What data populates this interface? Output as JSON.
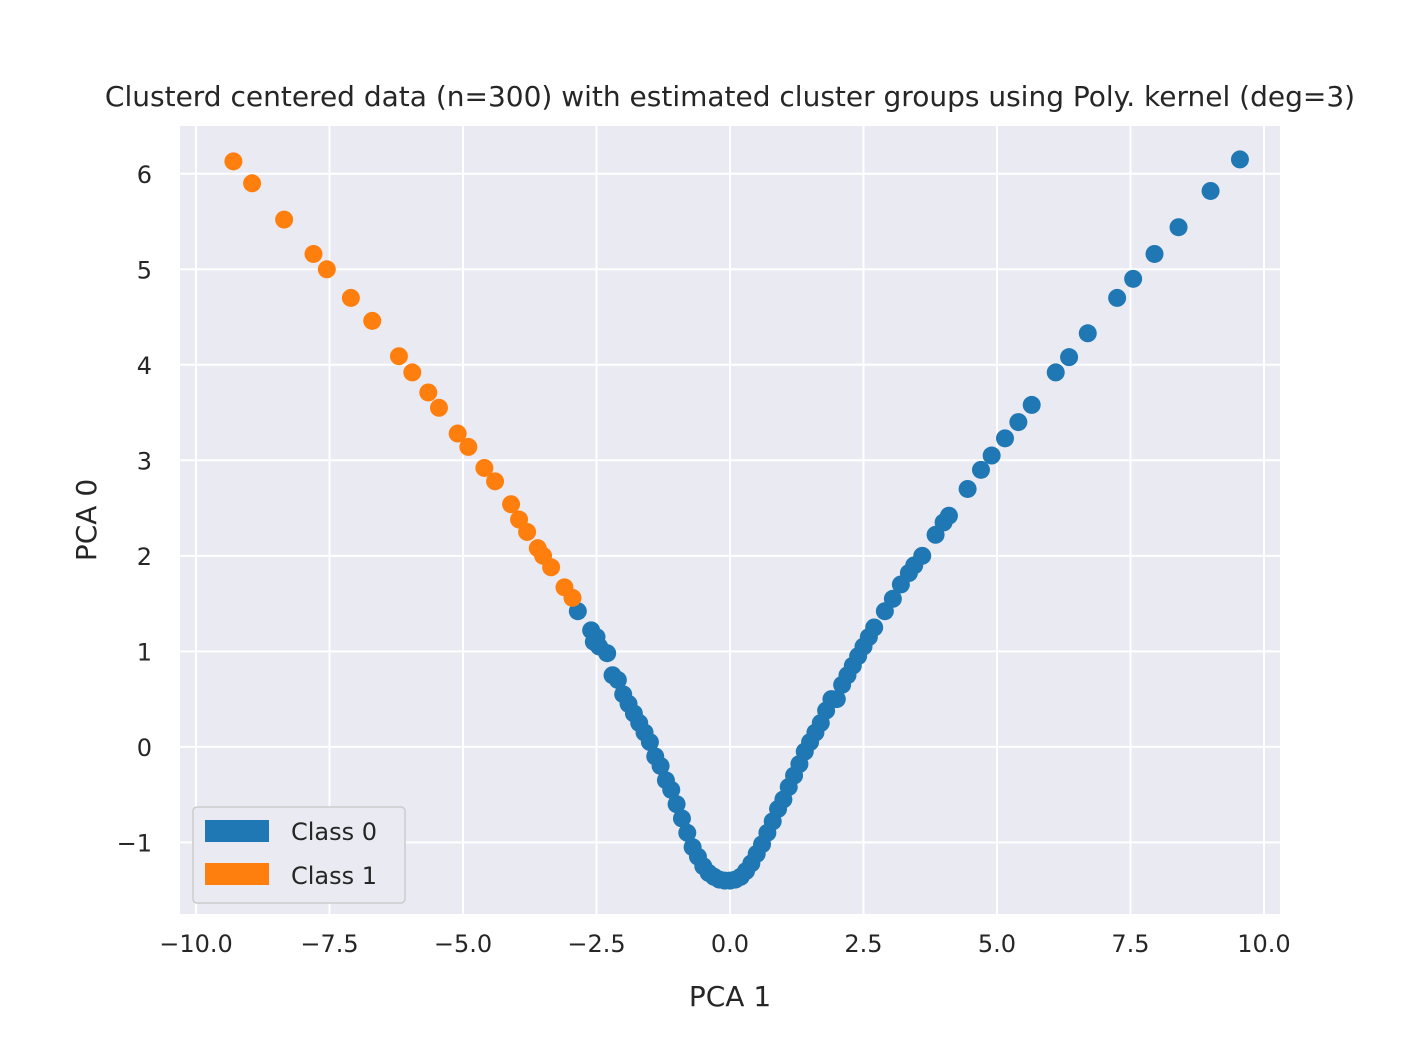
{
  "chart_data": {
    "type": "scatter",
    "title": "Clusterd centered data (n=300) with estimated cluster groups using Poly. kernel (deg=3)",
    "xlabel": "PCA 1",
    "ylabel": "PCA 0",
    "xlim": [
      -10.3,
      10.3
    ],
    "ylim": [
      -1.75,
      6.5
    ],
    "x_ticks": [
      -10.0,
      -7.5,
      -5.0,
      -2.5,
      0.0,
      2.5,
      5.0,
      7.5,
      10.0
    ],
    "x_tick_labels": [
      "−10.0",
      "−7.5",
      "−5.0",
      "−2.5",
      "0.0",
      "2.5",
      "5.0",
      "7.5",
      "10.0"
    ],
    "y_ticks": [
      -1,
      0,
      1,
      2,
      3,
      4,
      5,
      6
    ],
    "y_tick_labels": [
      "−1",
      "0",
      "1",
      "2",
      "3",
      "4",
      "5",
      "6"
    ],
    "grid": true,
    "legend_position": "lower-left",
    "background_color": "#eaeaf2",
    "series": [
      {
        "name": "Class 0",
        "color": "#1f77b4",
        "x": [
          -2.85,
          -2.6,
          -2.55,
          -2.5,
          -2.45,
          -2.3,
          -2.2,
          -2.1,
          -2.0,
          -1.9,
          -1.8,
          -1.7,
          -1.6,
          -1.5,
          -1.4,
          -1.3,
          -1.2,
          -1.1,
          -1.0,
          -0.9,
          -0.8,
          -0.7,
          -0.6,
          -0.5,
          -0.4,
          -0.3,
          -0.2,
          -0.1,
          0.0,
          0.1,
          0.2,
          0.3,
          0.4,
          0.5,
          0.6,
          0.7,
          0.8,
          0.9,
          1.0,
          1.1,
          1.2,
          1.3,
          1.4,
          1.5,
          1.6,
          1.7,
          1.8,
          1.9,
          2.0,
          2.1,
          2.2,
          2.3,
          2.4,
          2.5,
          2.6,
          2.7,
          2.9,
          3.05,
          3.2,
          3.35,
          3.45,
          3.6,
          3.85,
          4.0,
          4.1,
          4.45,
          4.7,
          4.9,
          5.15,
          5.4,
          5.65,
          6.1,
          6.35,
          6.7,
          7.25,
          7.55,
          7.95,
          8.4,
          9.0,
          9.55
        ],
        "y": [
          1.42,
          1.22,
          1.1,
          1.15,
          1.05,
          0.98,
          0.75,
          0.7,
          0.55,
          0.45,
          0.35,
          0.25,
          0.15,
          0.05,
          -0.1,
          -0.2,
          -0.35,
          -0.45,
          -0.6,
          -0.75,
          -0.9,
          -1.05,
          -1.15,
          -1.25,
          -1.32,
          -1.36,
          -1.39,
          -1.4,
          -1.4,
          -1.39,
          -1.36,
          -1.3,
          -1.22,
          -1.12,
          -1.02,
          -0.9,
          -0.78,
          -0.65,
          -0.55,
          -0.42,
          -0.3,
          -0.18,
          -0.05,
          0.05,
          0.15,
          0.25,
          0.38,
          0.5,
          0.5,
          0.65,
          0.75,
          0.85,
          0.95,
          1.05,
          1.15,
          1.25,
          1.42,
          1.55,
          1.7,
          1.82,
          1.9,
          2.0,
          2.22,
          2.35,
          2.42,
          2.7,
          2.9,
          3.05,
          3.23,
          3.4,
          3.58,
          3.92,
          4.08,
          4.33,
          4.7,
          4.9,
          5.16,
          5.44,
          5.82,
          6.15
        ]
      },
      {
        "name": "Class 1",
        "color": "#ff7f0e",
        "x": [
          -9.3,
          -8.95,
          -8.35,
          -7.8,
          -7.55,
          -7.1,
          -6.7,
          -6.2,
          -5.95,
          -5.65,
          -5.45,
          -5.1,
          -4.9,
          -4.6,
          -4.4,
          -4.1,
          -3.95,
          -3.8,
          -3.6,
          -3.5,
          -3.35,
          -3.1,
          -2.95
        ],
        "y": [
          6.13,
          5.9,
          5.52,
          5.16,
          5.0,
          4.7,
          4.46,
          4.09,
          3.92,
          3.71,
          3.55,
          3.28,
          3.14,
          2.92,
          2.78,
          2.54,
          2.38,
          2.25,
          2.08,
          2.0,
          1.88,
          1.67,
          1.56
        ]
      }
    ]
  }
}
